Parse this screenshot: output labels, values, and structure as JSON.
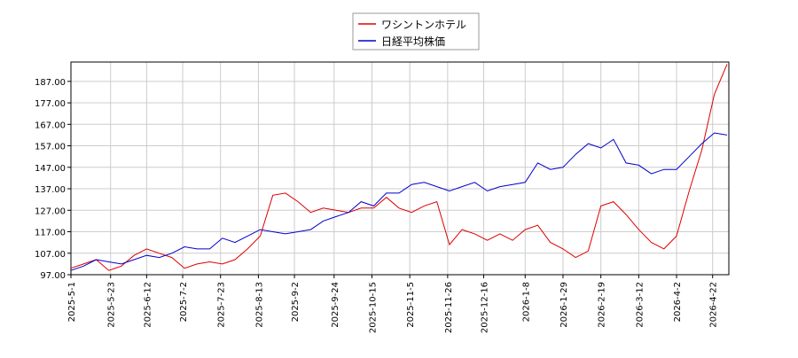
{
  "chart_data": {
    "type": "line",
    "x": [
      "2025-5-1",
      "2025-5-8",
      "2025-5-15",
      "2025-5-22",
      "2025-5-29",
      "2025-6-5",
      "2025-6-12",
      "2025-6-19",
      "2025-6-26",
      "2025-7-3",
      "2025-7-10",
      "2025-7-17",
      "2025-7-24",
      "2025-7-31",
      "2025-8-7",
      "2025-8-14",
      "2025-8-21",
      "2025-8-28",
      "2025-9-4",
      "2025-9-11",
      "2025-9-18",
      "2025-9-25",
      "2025-10-2",
      "2025-10-9",
      "2025-10-16",
      "2025-10-23",
      "2025-10-30",
      "2025-11-6",
      "2025-11-13",
      "2025-11-20",
      "2025-11-27",
      "2025-12-4",
      "2025-12-11",
      "2025-12-18",
      "2025-12-25",
      "2026-1-1",
      "2026-1-8",
      "2026-1-15",
      "2026-1-22",
      "2026-1-29",
      "2026-2-5",
      "2026-2-12",
      "2026-2-19",
      "2026-2-26",
      "2026-3-5",
      "2026-3-12",
      "2026-3-19",
      "2026-3-26",
      "2026-4-2",
      "2026-4-9",
      "2026-4-16",
      "2026-4-23",
      "2026-4-30"
    ],
    "series": [
      {
        "name": "ワシントンホテル",
        "color": "#dd0000",
        "values": [
          100,
          102,
          104,
          99,
          101,
          106,
          109,
          107,
          105,
          100,
          102,
          103,
          102,
          104,
          109,
          115,
          134,
          135,
          131,
          126,
          128,
          127,
          126,
          128,
          128,
          133,
          128,
          126,
          129,
          131,
          111,
          118,
          116,
          113,
          116,
          113,
          118,
          120,
          112,
          109,
          105,
          108,
          129,
          131,
          125,
          118,
          112,
          109,
          115,
          136,
          155,
          181,
          195
        ]
      },
      {
        "name": "日経平均株価",
        "color": "#0000cc",
        "values": [
          99,
          101,
          104,
          103,
          102,
          104,
          106,
          105,
          107,
          110,
          109,
          109,
          114,
          112,
          115,
          118,
          117,
          116,
          117,
          118,
          122,
          124,
          126,
          131,
          129,
          135,
          135,
          139,
          140,
          138,
          136,
          138,
          140,
          136,
          138,
          139,
          140,
          149,
          146,
          147,
          153,
          158,
          156,
          160,
          149,
          148,
          144,
          146,
          146,
          152,
          158,
          163,
          162
        ]
      }
    ],
    "xlim": [
      "2025-5-1",
      "2026-5-1"
    ],
    "xticks": [
      "2025-5-1",
      "2025-5-23",
      "2025-6-12",
      "2025-7-2",
      "2025-7-23",
      "2025-8-13",
      "2025-9-2",
      "2025-9-24",
      "2025-10-15",
      "2025-11-5",
      "2025-11-26",
      "2025-12-16",
      "2026-1-8",
      "2026-1-29",
      "2026-2-19",
      "2026-3-12",
      "2026-4-2",
      "2026-4-22"
    ],
    "ylim": [
      97,
      196
    ],
    "yticks": [
      {
        "value": 97,
        "label": "97.00"
      },
      {
        "value": 107,
        "label": "107.00"
      },
      {
        "value": 117,
        "label": "117.00"
      },
      {
        "value": 127,
        "label": "127.00"
      },
      {
        "value": 137,
        "label": "137.00"
      },
      {
        "value": 147,
        "label": "147.00"
      },
      {
        "value": 157,
        "label": "157.00"
      },
      {
        "value": 167,
        "label": "167.00"
      },
      {
        "value": 177,
        "label": "177.00"
      },
      {
        "value": 187,
        "label": "187.00"
      }
    ],
    "grid": true,
    "legend": "top"
  }
}
